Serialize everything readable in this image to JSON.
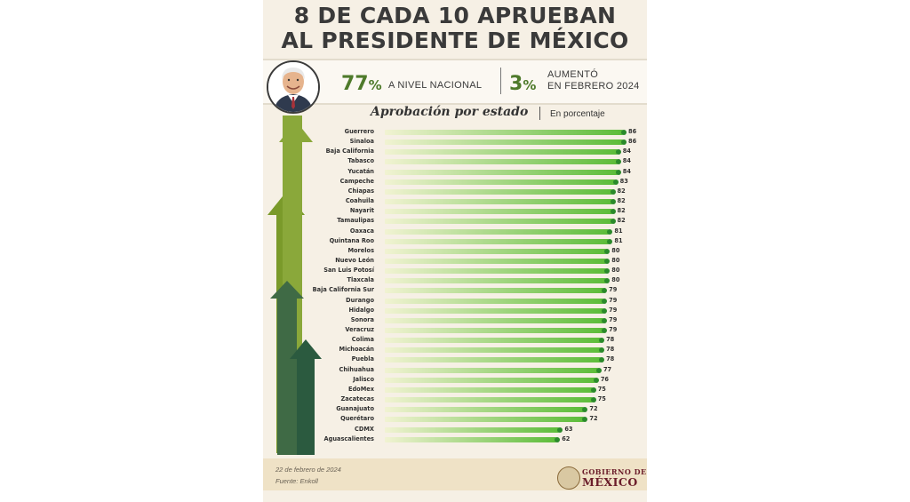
{
  "header": {
    "title_line1": "8 DE CADA 10 APRUEBAN",
    "title_line2": "AL PRESIDENTE DE MÉXICO"
  },
  "stats": {
    "national_value": "77",
    "national_suffix": "%",
    "national_label": "A NIVEL NACIONAL",
    "increase_value": "3",
    "increase_suffix": "%",
    "increase_label_line1": "AUMENTÓ",
    "increase_label_line2": "EN FEBRERO 2024"
  },
  "chart_data": {
    "type": "bar",
    "orientation": "horizontal",
    "title": "Aprobación por estado",
    "unit_label": "En porcentaje",
    "categories": [
      "Guerrero",
      "Sinaloa",
      "Baja California",
      "Tabasco",
      "Yucatán",
      "Campeche",
      "Chiapas",
      "Coahuila",
      "Nayarit",
      "Tamaulipas",
      "Oaxaca",
      "Quintana Roo",
      "Morelos",
      "Nuevo León",
      "San Luis Potosí",
      "Tlaxcala",
      "Baja California Sur",
      "Durango",
      "Hidalgo",
      "Sonora",
      "Veracruz",
      "Colima",
      "Michoacán",
      "Puebla",
      "Chihuahua",
      "Jalisco",
      "EdoMex",
      "Zacatecas",
      "Guanajuato",
      "Querétaro",
      "CDMX",
      "Aguascalientes"
    ],
    "values": [
      86,
      86,
      84,
      84,
      84,
      83,
      82,
      82,
      82,
      82,
      81,
      81,
      80,
      80,
      80,
      80,
      79,
      79,
      79,
      79,
      79,
      78,
      78,
      78,
      77,
      76,
      75,
      75,
      72,
      72,
      63,
      62
    ],
    "xlim": [
      0,
      86
    ],
    "grid": false,
    "colors": {
      "bar_light": "#f1f3d2",
      "bar_dark": "#5cbc39",
      "dot": "#2b8a2b"
    }
  },
  "footer": {
    "date": "22 de febrero de 2024",
    "source": "Fuente: Enkoll",
    "gov_line1": "GOBIERNO DE",
    "gov_line2": "MÉXICO"
  }
}
